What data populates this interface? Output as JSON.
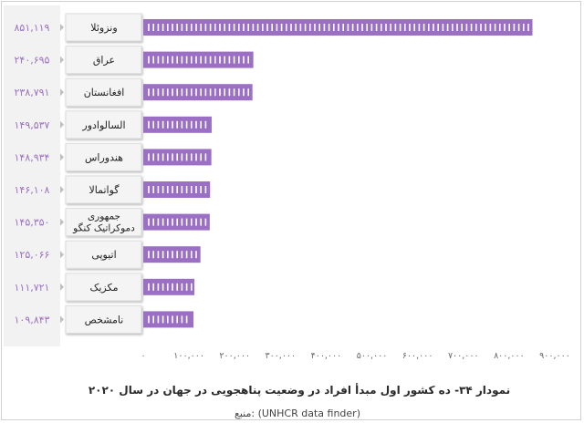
{
  "chart_data": {
    "type": "bar",
    "orientation": "horizontal",
    "categories": [
      "ونزوئلا",
      "عراق",
      "افغانستان",
      "السالوادور",
      "هندوراس",
      "گواتمالا",
      "جمهوری دموکراتیک کنگو",
      "اتیوپی",
      "مکزیک",
      "نامشخص"
    ],
    "values": [
      851119,
      240695,
      238791,
      149537,
      148934,
      146108,
      145350,
      125066,
      111721,
      109843
    ],
    "value_labels": [
      "۸۵۱,۱۱۹",
      "۲۴۰,۶۹۵",
      "۲۳۸,۷۹۱",
      "۱۴۹,۵۳۷",
      "۱۴۸,۹۳۴",
      "۱۴۶,۱۰۸",
      "۱۴۵,۳۵۰",
      "۱۲۵,۰۶۶",
      "۱۱۱,۷۲۱",
      "۱۰۹,۸۴۳"
    ],
    "xlim": [
      0,
      900000
    ],
    "xticks": [
      0,
      100000,
      200000,
      300000,
      400000,
      500000,
      600000,
      700000,
      800000,
      900000
    ],
    "xtick_labels": [
      "۰",
      "۱۰۰,۰۰۰",
      "۲۰۰,۰۰۰",
      "۳۰۰,۰۰۰",
      "۴۰۰,۰۰۰",
      "۵۰۰,۰۰۰",
      "۶۰۰,۰۰۰",
      "۷۰۰,۰۰۰",
      "۸۰۰,۰۰۰",
      "۹۰۰,۰۰۰"
    ],
    "title": "نمودار ۳۴- ده کشور اول مبدأ افراد در وضعیت پناهجویی در جهان در سال ۲۰۲۰",
    "source": "منبع: (UNHCR data finder)",
    "colors": {
      "bar": "#9b6fc4",
      "label_text": "#9b6fc4",
      "panel": "#f2f2f2",
      "tick_text": "#666666"
    }
  }
}
